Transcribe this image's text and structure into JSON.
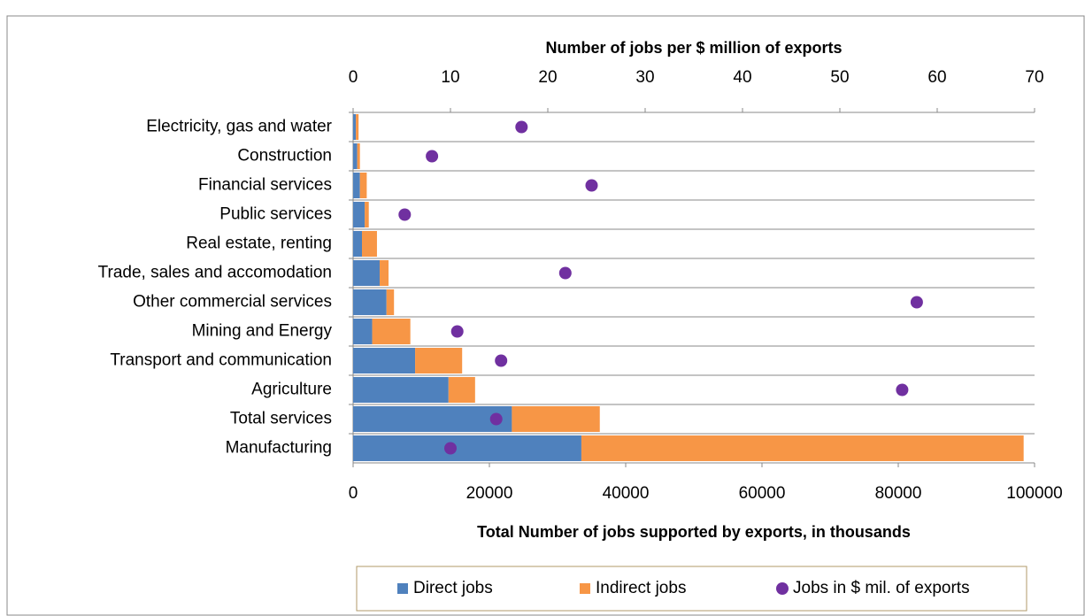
{
  "chart_data": {
    "type": "bar",
    "orientation": "horizontal",
    "stacked": true,
    "x2_label": "Number of jobs per $ million of exports",
    "x_label": "Total Number of jobs supported by exports, in thousands",
    "categories": [
      "Electricity, gas and water",
      "Construction",
      "Financial services",
      "Public services",
      "Real estate, renting",
      "Trade, sales and accomodation",
      "Other commercial services",
      "Mining and Energy",
      "Transport and communication",
      "Agriculture",
      "Total services",
      "Manufacturing"
    ],
    "series": [
      {
        "name": "Direct jobs",
        "type": "bar",
        "color": "#4f81bd",
        "values": [
          400,
          600,
          1000,
          1700,
          1300,
          3900,
          4900,
          2800,
          9100,
          14000,
          23300,
          33500
        ]
      },
      {
        "name": "Indirect jobs",
        "type": "bar",
        "color": "#f79646",
        "values": [
          400,
          400,
          1000,
          600,
          2200,
          1300,
          1100,
          5600,
          6900,
          3900,
          12900,
          64900
        ]
      },
      {
        "name": "Jobs in $ mil. of exports",
        "type": "scatter",
        "axis": "x2",
        "color": "#7030a0",
        "values": [
          17.3,
          8.1,
          24.5,
          5.3,
          null,
          21.8,
          57.9,
          10.7,
          15.2,
          56.4,
          14.7,
          10.0
        ]
      }
    ],
    "xlim": [
      0,
      100000
    ],
    "xticks": [
      0,
      20000,
      40000,
      60000,
      80000,
      100000
    ],
    "x2lim": [
      0,
      70
    ],
    "x2ticks": [
      0,
      10,
      20,
      30,
      40,
      50,
      60,
      70
    ],
    "grid": true,
    "legend": "bottom"
  }
}
